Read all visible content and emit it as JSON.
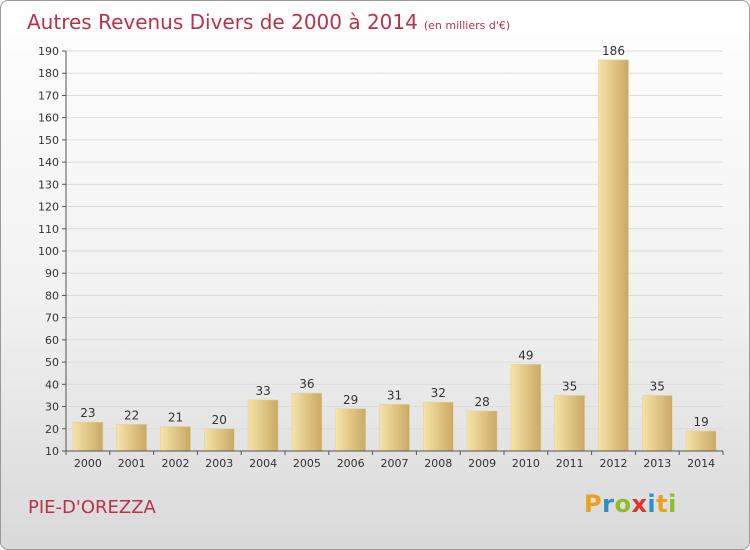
{
  "title": "Autres Revenus Divers de 2000 à 2014",
  "subtitle": "(en milliers d'€)",
  "commune": "PIE-D'OREZZA",
  "logo": {
    "letters": [
      "P",
      "r",
      "o",
      "x",
      "i",
      "t",
      "i"
    ],
    "colors": [
      "#e8a21c",
      "#2e8fc9",
      "#8cbf26",
      "#e0342b",
      "#2e8fc9",
      "#e8a21c",
      "#8cbf26"
    ]
  },
  "colors": {
    "bar_light": "#f7e3a8",
    "bar_dark": "#c9a964",
    "title": "#b9324a"
  },
  "chart_data": {
    "type": "bar",
    "categories": [
      "2000",
      "2001",
      "2002",
      "2003",
      "2004",
      "2005",
      "2006",
      "2007",
      "2008",
      "2009",
      "2010",
      "2011",
      "2012",
      "2013",
      "2014"
    ],
    "values": [
      23,
      22,
      21,
      20,
      33,
      36,
      29,
      31,
      32,
      28,
      49,
      35,
      186,
      35,
      19
    ],
    "ylim": [
      10,
      190
    ],
    "yticks": [
      10,
      20,
      30,
      40,
      50,
      60,
      70,
      80,
      90,
      100,
      110,
      120,
      130,
      140,
      150,
      160,
      170,
      180,
      190
    ],
    "grid": true
  }
}
